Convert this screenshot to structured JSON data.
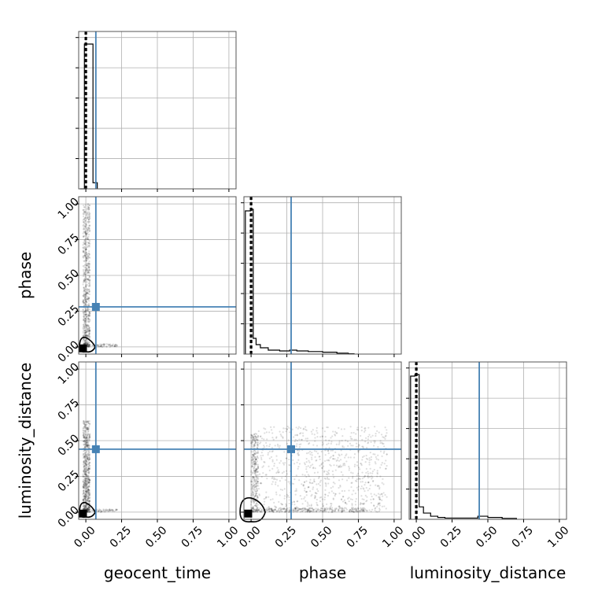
{
  "chart_data": {
    "type": "corner",
    "params": [
      "geocent_time",
      "phase",
      "luminosity_distance"
    ],
    "axis_range": [
      -0.05,
      1.05
    ],
    "tick_values": [
      0.0,
      0.25,
      0.5,
      0.75,
      1.0
    ],
    "tick_labels": [
      "0.00",
      "0.25",
      "0.50",
      "0.75",
      "1.00"
    ],
    "xlabels": [
      "geocent_time",
      "phase",
      "luminosity_distance"
    ],
    "ylabels": [
      "",
      "phase",
      "luminosity_distance"
    ],
    "grid": true,
    "truths": {
      "geocent_time": 0.07,
      "phase": 0.28,
      "luminosity_distance": 0.44
    },
    "truth_color": "#4682b4",
    "hist_color": "#000000",
    "quantile_lines": {
      "geocent_time": [
        -0.005,
        0.0,
        0.005
      ],
      "phase": [
        -0.005,
        0.0,
        0.005
      ],
      "luminosity_distance": [
        -0.005,
        0.0,
        0.005
      ]
    },
    "histograms": {
      "geocent_time": {
        "edges": [
          -0.04,
          -0.01,
          0.02,
          0.05,
          0.08
        ],
        "counts": [
          0.0,
          0.95,
          0.95,
          0.04,
          0.0
        ]
      },
      "phase": {
        "edges": [
          -0.04,
          -0.005,
          0.015,
          0.035,
          0.065,
          0.12,
          0.2,
          0.27,
          0.32,
          0.4,
          0.5,
          0.6,
          0.68,
          0.72
        ],
        "counts": [
          0.91,
          0.92,
          0.1,
          0.06,
          0.04,
          0.025,
          0.02,
          0.025,
          0.02,
          0.016,
          0.012,
          0.006,
          0.002
        ]
      },
      "luminosity_distance": {
        "edges": [
          -0.04,
          -0.01,
          0.02,
          0.05,
          0.1,
          0.15,
          0.2,
          0.3,
          0.4,
          0.43,
          0.5,
          0.6,
          0.7
        ],
        "counts": [
          0.92,
          0.93,
          0.08,
          0.04,
          0.02,
          0.012,
          0.008,
          0.008,
          0.008,
          0.02,
          0.012,
          0.006
        ]
      }
    },
    "scatter_extents": {
      "phase_vs_geocent_time": {
        "x": [
          -0.02,
          0.05
        ],
        "y": [
          0.0,
          1.0
        ],
        "outliers_x_max": 0.22
      },
      "luminosity_distance_vs_geocent_time": {
        "x": [
          -0.02,
          0.05
        ],
        "y": [
          0.0,
          0.64
        ],
        "outliers_x_max": 0.22
      },
      "luminosity_distance_vs_phase": {
        "x": [
          0.0,
          0.95
        ],
        "y": [
          0.0,
          0.6
        ]
      }
    },
    "markers": {
      "phase_vs_geocent_time": {
        "x": -0.02,
        "y": -0.01
      },
      "luminosity_distance_vs_geocent_time": {
        "x": -0.02,
        "y": -0.01
      },
      "luminosity_distance_vs_phase": {
        "x": -0.02,
        "y": -0.01
      }
    }
  }
}
